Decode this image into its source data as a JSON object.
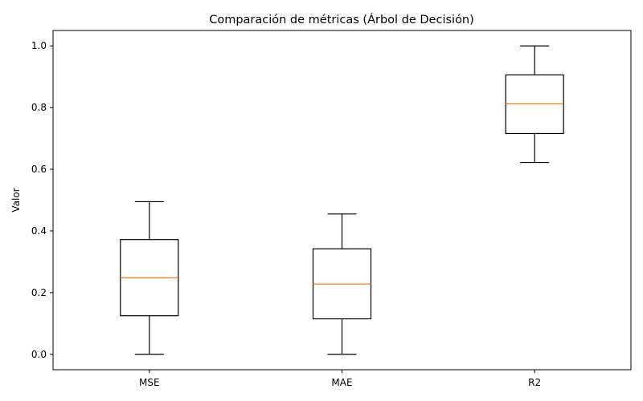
{
  "chart_data": {
    "type": "box",
    "title": "Comparación de métricas (Árbol de Decisión)",
    "xlabel": "",
    "ylabel": "Valor",
    "categories": [
      "MSE",
      "MAE",
      "R2"
    ],
    "boxes": [
      {
        "name": "MSE",
        "whisker_low": 0.0,
        "q1": 0.125,
        "median": 0.248,
        "q3": 0.372,
        "whisker_high": 0.495
      },
      {
        "name": "MAE",
        "whisker_low": 0.0,
        "q1": 0.115,
        "median": 0.228,
        "q3": 0.342,
        "whisker_high": 0.455
      },
      {
        "name": "R2",
        "whisker_low": 0.622,
        "q1": 0.716,
        "median": 0.812,
        "q3": 0.906,
        "whisker_high": 1.0
      }
    ],
    "ylim": [
      -0.05,
      1.05
    ],
    "yticks": [
      0.0,
      0.2,
      0.4,
      0.6,
      0.8,
      1.0
    ],
    "ytick_labels": [
      "0.0",
      "0.2",
      "0.4",
      "0.6",
      "0.8",
      "1.0"
    ],
    "grid": false,
    "colors": {
      "box": "#000000",
      "median": "#ff7f0e"
    }
  }
}
